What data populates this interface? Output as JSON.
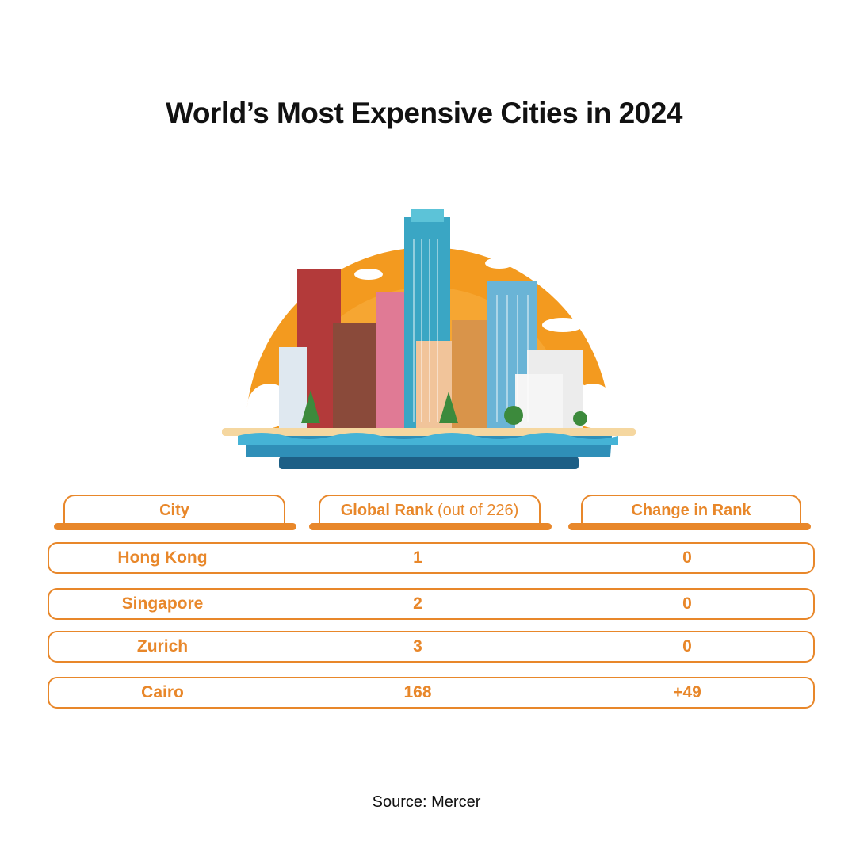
{
  "title": "World’s Most Expensive Cities in 2024",
  "source": "Source: Mercer",
  "colors": {
    "accent": "#e8872a",
    "sun": "#f39a1f",
    "water": "#2f8fb8",
    "sand": "#f5d7a0"
  },
  "chart_data": {
    "type": "table",
    "columns": [
      {
        "label": "City",
        "note": ""
      },
      {
        "label": "Global Rank",
        "note": "(out of 226)"
      },
      {
        "label": "Change in Rank",
        "note": ""
      }
    ],
    "rows": [
      {
        "city": "Hong Kong",
        "rank": "1",
        "change": "0"
      },
      {
        "city": "Singapore",
        "rank": "2",
        "change": "0"
      },
      {
        "city": "Zurich",
        "rank": "3",
        "change": "0"
      },
      {
        "city": "Cairo",
        "rank": "168",
        "change": "+49"
      }
    ]
  }
}
